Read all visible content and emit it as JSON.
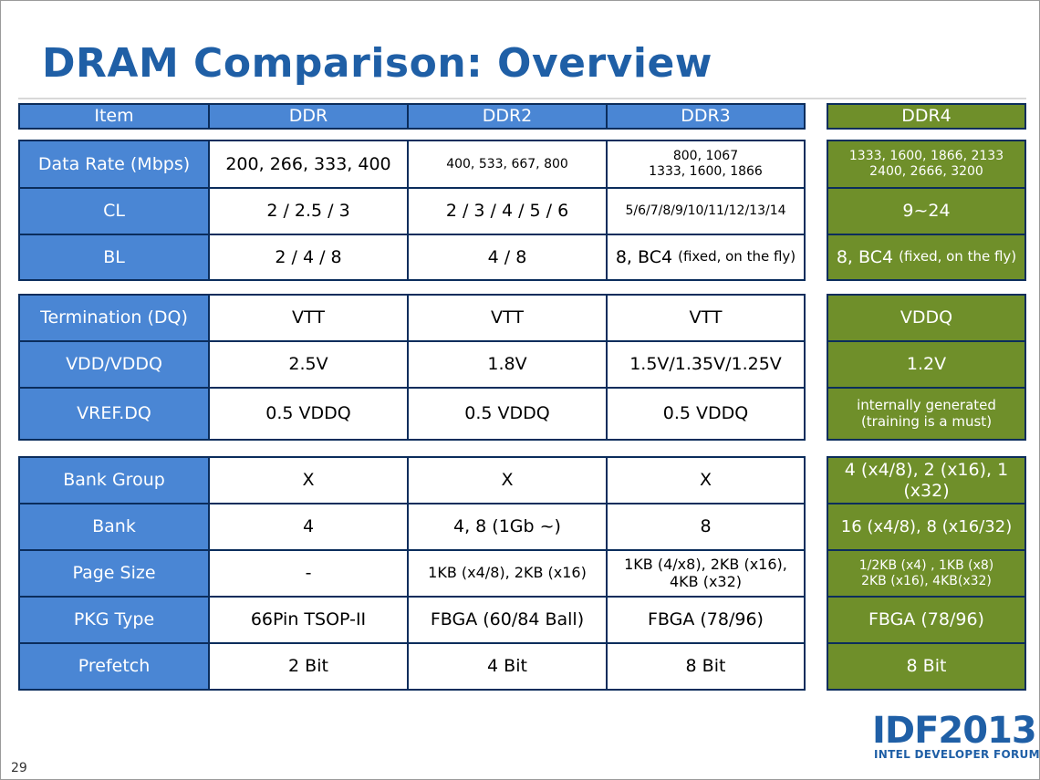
{
  "title": "DRAM Comparison: Overview",
  "page_number": "29",
  "logo": {
    "main": "IDF2013",
    "sub": "INTEL DEVELOPER FORUM"
  },
  "colors": {
    "header_blue": "#4a86d4",
    "ddr4_green": "#6f8f2a",
    "title_blue": "#1f5fa6",
    "border": "#0b2d5c"
  },
  "table": {
    "headers": [
      "Item",
      "DDR",
      "DDR2",
      "DDR3",
      "DDR4"
    ],
    "rows": [
      {
        "label": "Data Rate (Mbps)",
        "ddr": "200, 266, 333, 400",
        "ddr2": "400, 533, 667, 800",
        "ddr3": [
          "800, 1067",
          "1333, 1600, 1866"
        ],
        "ddr4": [
          "1333, 1600, 1866, 2133",
          "2400, 2666, 3200"
        ]
      },
      {
        "label": "CL",
        "ddr": "2 / 2.5 / 3",
        "ddr2": "2 / 3 / 4 / 5 / 6",
        "ddr3": "5/6/7/8/9/10/11/12/13/14",
        "ddr4": "9~24"
      },
      {
        "label": "BL",
        "ddr": "2 / 4 / 8",
        "ddr2": "4 / 8",
        "ddr3": {
          "main": "8, BC4",
          "note": "(fixed, on the fly)"
        },
        "ddr4": {
          "main": "8, BC4",
          "note": "(fixed, on the fly)"
        }
      },
      {
        "label": "Termination (DQ)",
        "ddr": "VTT",
        "ddr2": "VTT",
        "ddr3": "VTT",
        "ddr4": "VDDQ"
      },
      {
        "label": "VDD/VDDQ",
        "ddr": "2.5V",
        "ddr2": "1.8V",
        "ddr3": "1.5V/1.35V/1.25V",
        "ddr4": "1.2V"
      },
      {
        "label": "VREF.DQ",
        "ddr": "0.5 VDDQ",
        "ddr2": "0.5 VDDQ",
        "ddr3": "0.5 VDDQ",
        "ddr4": [
          "internally generated",
          "(training is a must)"
        ]
      },
      {
        "label": "Bank Group",
        "ddr": "X",
        "ddr2": "X",
        "ddr3": "X",
        "ddr4": "4 (x4/8), 2 (x16), 1 (x32)"
      },
      {
        "label": "Bank",
        "ddr": "4",
        "ddr2": "4, 8 (1Gb ~)",
        "ddr3": "8",
        "ddr4": "16 (x4/8), 8 (x16/32)"
      },
      {
        "label": "Page Size",
        "ddr": "-",
        "ddr2": "1KB (x4/8), 2KB (x16)",
        "ddr3": "1KB (4/x8), 2KB (x16), 4KB (x32)",
        "ddr4": [
          "1/2KB (x4) , 1KB (x8)",
          "2KB (x16), 4KB(x32)"
        ]
      },
      {
        "label": "PKG Type",
        "ddr": "66Pin TSOP-II",
        "ddr2": "FBGA (60/84 Ball)",
        "ddr3": "FBGA (78/96)",
        "ddr4": "FBGA (78/96)"
      },
      {
        "label": "Prefetch",
        "ddr": "2 Bit",
        "ddr2": "4 Bit",
        "ddr3": "8 Bit",
        "ddr4": "8 Bit"
      }
    ]
  }
}
